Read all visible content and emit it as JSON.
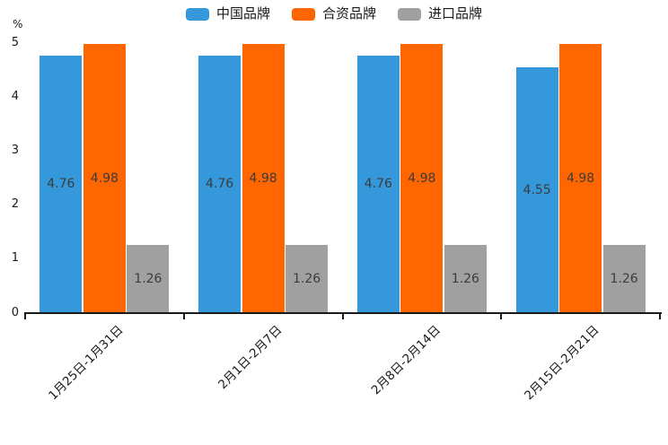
{
  "chart_data": {
    "type": "bar",
    "title": "",
    "ylabel": "%",
    "xlabel": "",
    "ylim": [
      0,
      5
    ],
    "yticks": [
      0,
      1,
      2,
      3,
      4,
      5
    ],
    "grid": false,
    "legend_position": "top",
    "value_labels": true,
    "categories": [
      "1月25日-1月31日",
      "2月1日-2月7日",
      "2月8日-2月14日",
      "2月15日-2月21日"
    ],
    "series": [
      {
        "name": "中国品牌",
        "color": "#3498db",
        "values": [
          4.76,
          4.76,
          4.76,
          4.55
        ]
      },
      {
        "name": "合资品牌",
        "color": "#ff6600",
        "values": [
          4.98,
          4.98,
          4.98,
          4.98
        ]
      },
      {
        "name": "进口品牌",
        "color": "#a0a0a0",
        "values": [
          1.26,
          1.26,
          1.26,
          1.26
        ]
      }
    ],
    "colors": {
      "axis": "#1a1a1a",
      "bar_label_text": "#3c3c3c",
      "background": "#ffffff"
    }
  }
}
